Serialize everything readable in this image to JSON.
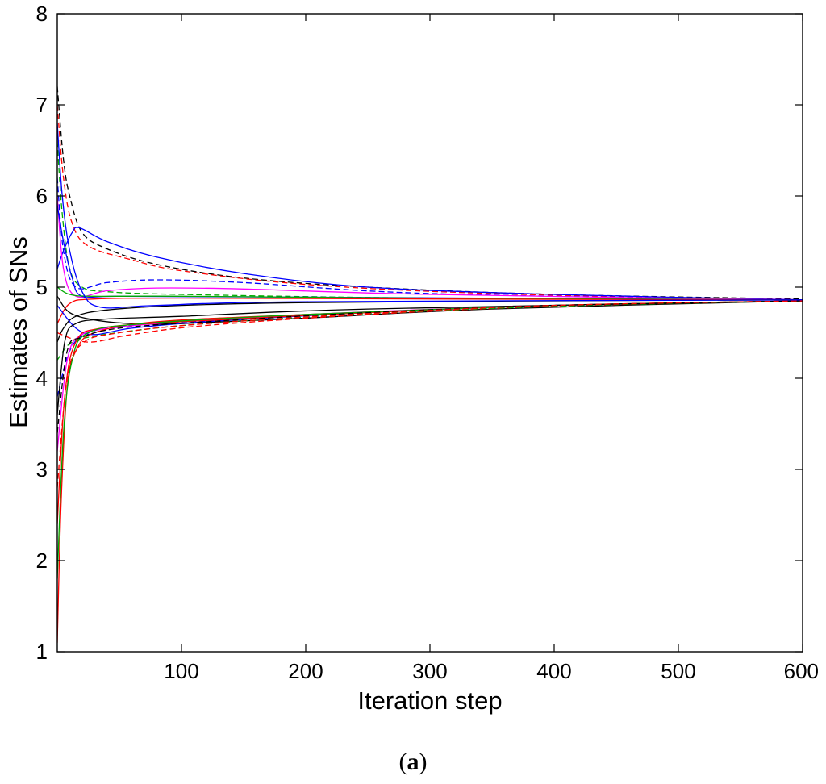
{
  "caption": {
    "open": "(",
    "letter": "a",
    "close": ")"
  },
  "chart_data": {
    "type": "line",
    "title": "",
    "xlabel": "Iteration step",
    "ylabel": "Estimates of SNs",
    "xlim": [
      0,
      600
    ],
    "ylim": [
      1,
      8
    ],
    "xticks": [
      100,
      200,
      300,
      400,
      500,
      600
    ],
    "yticks": [
      1,
      2,
      3,
      4,
      5,
      6,
      7,
      8
    ],
    "grid": false,
    "legend": "none",
    "converged_value": 4.85,
    "series": [
      {
        "color": "#000000",
        "style": "dashed",
        "points": [
          [
            0,
            7.2
          ],
          [
            5,
            6.4
          ],
          [
            10,
            6.0
          ],
          [
            20,
            5.6
          ],
          [
            40,
            5.42
          ],
          [
            80,
            5.25
          ],
          [
            150,
            5.1
          ],
          [
            250,
            5.0
          ],
          [
            400,
            4.92
          ],
          [
            600,
            4.87
          ]
        ]
      },
      {
        "color": "#ff0000",
        "style": "dashed",
        "points": [
          [
            0,
            7.0
          ],
          [
            5,
            6.2
          ],
          [
            12,
            5.7
          ],
          [
            25,
            5.45
          ],
          [
            60,
            5.3
          ],
          [
            100,
            5.18
          ],
          [
            200,
            5.03
          ],
          [
            350,
            4.93
          ],
          [
            600,
            4.86
          ]
        ]
      },
      {
        "color": "#0000ff",
        "style": "solid",
        "points": [
          [
            0,
            5.2
          ],
          [
            5,
            5.4
          ],
          [
            12,
            5.6
          ],
          [
            18,
            5.65
          ],
          [
            40,
            5.5
          ],
          [
            80,
            5.33
          ],
          [
            150,
            5.15
          ],
          [
            250,
            5.0
          ],
          [
            400,
            4.92
          ],
          [
            600,
            4.86
          ]
        ]
      },
      {
        "color": "#00aa00",
        "style": "dashed",
        "points": [
          [
            0,
            6.6
          ],
          [
            4,
            5.8
          ],
          [
            10,
            5.2
          ],
          [
            20,
            5.0
          ],
          [
            40,
            4.95
          ],
          [
            100,
            4.92
          ],
          [
            300,
            4.88
          ],
          [
            600,
            4.86
          ]
        ]
      },
      {
        "color": "#0000ff",
        "style": "dashed",
        "points": [
          [
            0,
            6.2
          ],
          [
            5,
            5.4
          ],
          [
            15,
            5.0
          ],
          [
            40,
            5.05
          ],
          [
            80,
            5.08
          ],
          [
            150,
            5.05
          ],
          [
            300,
            4.93
          ],
          [
            600,
            4.86
          ]
        ]
      },
      {
        "color": "#ff00ff",
        "style": "solid",
        "points": [
          [
            0,
            6.0
          ],
          [
            5,
            5.2
          ],
          [
            15,
            4.9
          ],
          [
            40,
            4.96
          ],
          [
            80,
            4.99
          ],
          [
            150,
            4.98
          ],
          [
            300,
            4.92
          ],
          [
            600,
            4.86
          ]
        ]
      },
      {
        "color": "#0000ff",
        "style": "solid",
        "points": [
          [
            0,
            5.9
          ],
          [
            5,
            5.5
          ],
          [
            12,
            5.1
          ],
          [
            20,
            4.9
          ],
          [
            50,
            4.9
          ],
          [
            200,
            4.89
          ],
          [
            600,
            4.86
          ]
        ]
      },
      {
        "color": "#00aa00",
        "style": "solid",
        "points": [
          [
            0,
            5.0
          ],
          [
            10,
            4.92
          ],
          [
            30,
            4.9
          ],
          [
            100,
            4.9
          ],
          [
            300,
            4.88
          ],
          [
            600,
            4.86
          ]
        ]
      },
      {
        "color": "#ff0000",
        "style": "solid",
        "points": [
          [
            0,
            4.6
          ],
          [
            10,
            4.82
          ],
          [
            30,
            4.87
          ],
          [
            100,
            4.88
          ],
          [
            300,
            4.87
          ],
          [
            600,
            4.86
          ]
        ]
      },
      {
        "color": "#000000",
        "style": "solid",
        "points": [
          [
            0,
            4.4
          ],
          [
            5,
            4.55
          ],
          [
            15,
            4.68
          ],
          [
            40,
            4.75
          ],
          [
            100,
            4.8
          ],
          [
            200,
            4.83
          ],
          [
            400,
            4.85
          ],
          [
            600,
            4.86
          ]
        ]
      },
      {
        "color": "#000000",
        "style": "solid",
        "points": [
          [
            0,
            4.9
          ],
          [
            10,
            4.72
          ],
          [
            30,
            4.64
          ],
          [
            60,
            4.6
          ],
          [
            100,
            4.6
          ],
          [
            200,
            4.66
          ],
          [
            350,
            4.76
          ],
          [
            600,
            4.85
          ]
        ]
      },
      {
        "color": "#0000ff",
        "style": "solid",
        "points": [
          [
            0,
            4.8
          ],
          [
            15,
            4.55
          ],
          [
            30,
            4.48
          ],
          [
            60,
            4.55
          ],
          [
            120,
            4.62
          ],
          [
            250,
            4.72
          ],
          [
            400,
            4.8
          ],
          [
            600,
            4.85
          ]
        ]
      },
      {
        "color": "#ff0000",
        "style": "dashed",
        "points": [
          [
            0,
            4.5
          ],
          [
            15,
            4.42
          ],
          [
            30,
            4.4
          ],
          [
            60,
            4.48
          ],
          [
            120,
            4.58
          ],
          [
            250,
            4.7
          ],
          [
            400,
            4.79
          ],
          [
            600,
            4.85
          ]
        ]
      },
      {
        "color": "#00aa00",
        "style": "dashed",
        "points": [
          [
            0,
            4.2
          ],
          [
            10,
            4.38
          ],
          [
            25,
            4.45
          ],
          [
            60,
            4.52
          ],
          [
            120,
            4.6
          ],
          [
            250,
            4.71
          ],
          [
            400,
            4.79
          ],
          [
            600,
            4.85
          ]
        ]
      },
      {
        "color": "#0000ff",
        "style": "dashed",
        "points": [
          [
            0,
            3.8
          ],
          [
            10,
            4.3
          ],
          [
            25,
            4.5
          ],
          [
            60,
            4.58
          ],
          [
            120,
            4.63
          ],
          [
            250,
            4.72
          ],
          [
            400,
            4.8
          ],
          [
            600,
            4.85
          ]
        ]
      },
      {
        "color": "#ff00ff",
        "style": "solid",
        "points": [
          [
            0,
            3.2
          ],
          [
            8,
            4.2
          ],
          [
            20,
            4.48
          ],
          [
            50,
            4.56
          ],
          [
            120,
            4.64
          ],
          [
            250,
            4.73
          ],
          [
            400,
            4.8
          ],
          [
            600,
            4.85
          ]
        ]
      },
      {
        "color": "#ff0000",
        "style": "solid",
        "points": [
          [
            0,
            2.4
          ],
          [
            6,
            3.8
          ],
          [
            15,
            4.4
          ],
          [
            35,
            4.55
          ],
          [
            100,
            4.62
          ],
          [
            250,
            4.72
          ],
          [
            400,
            4.8
          ],
          [
            600,
            4.85
          ]
        ]
      },
      {
        "color": "#ff0000",
        "style": "solid",
        "points": [
          [
            0,
            1.1
          ],
          [
            3,
            2.6
          ],
          [
            8,
            3.9
          ],
          [
            15,
            4.3
          ],
          [
            30,
            4.5
          ],
          [
            80,
            4.62
          ],
          [
            200,
            4.7
          ],
          [
            400,
            4.8
          ],
          [
            600,
            4.85
          ]
        ]
      },
      {
        "color": "#00aa00",
        "style": "solid",
        "points": [
          [
            0,
            1.8
          ],
          [
            5,
            3.4
          ],
          [
            12,
            4.2
          ],
          [
            25,
            4.5
          ],
          [
            70,
            4.6
          ],
          [
            200,
            4.7
          ],
          [
            400,
            4.8
          ],
          [
            600,
            4.85
          ]
        ]
      },
      {
        "color": "#000000",
        "style": "solid",
        "points": [
          [
            0,
            3.6
          ],
          [
            6,
            4.4
          ],
          [
            15,
            4.6
          ],
          [
            40,
            4.65
          ],
          [
            100,
            4.68
          ],
          [
            250,
            4.76
          ],
          [
            600,
            4.85
          ]
        ]
      },
      {
        "color": "#000000",
        "style": "dashed",
        "points": [
          [
            0,
            3.4
          ],
          [
            8,
            4.3
          ],
          [
            20,
            4.45
          ],
          [
            50,
            4.55
          ],
          [
            120,
            4.62
          ],
          [
            250,
            4.72
          ],
          [
            400,
            4.8
          ],
          [
            600,
            4.85
          ]
        ]
      },
      {
        "color": "#0000ff",
        "style": "solid",
        "points": [
          [
            0,
            6.8
          ],
          [
            4,
            6.0
          ],
          [
            10,
            5.4
          ],
          [
            20,
            4.95
          ],
          [
            35,
            4.78
          ],
          [
            80,
            4.8
          ],
          [
            200,
            4.84
          ],
          [
            600,
            4.86
          ]
        ]
      },
      {
        "color": "#ff0000",
        "style": "dashed",
        "points": [
          [
            0,
            2.8
          ],
          [
            8,
            4.0
          ],
          [
            20,
            4.38
          ],
          [
            50,
            4.5
          ],
          [
            120,
            4.6
          ],
          [
            250,
            4.71
          ],
          [
            400,
            4.8
          ],
          [
            600,
            4.85
          ]
        ]
      }
    ]
  }
}
